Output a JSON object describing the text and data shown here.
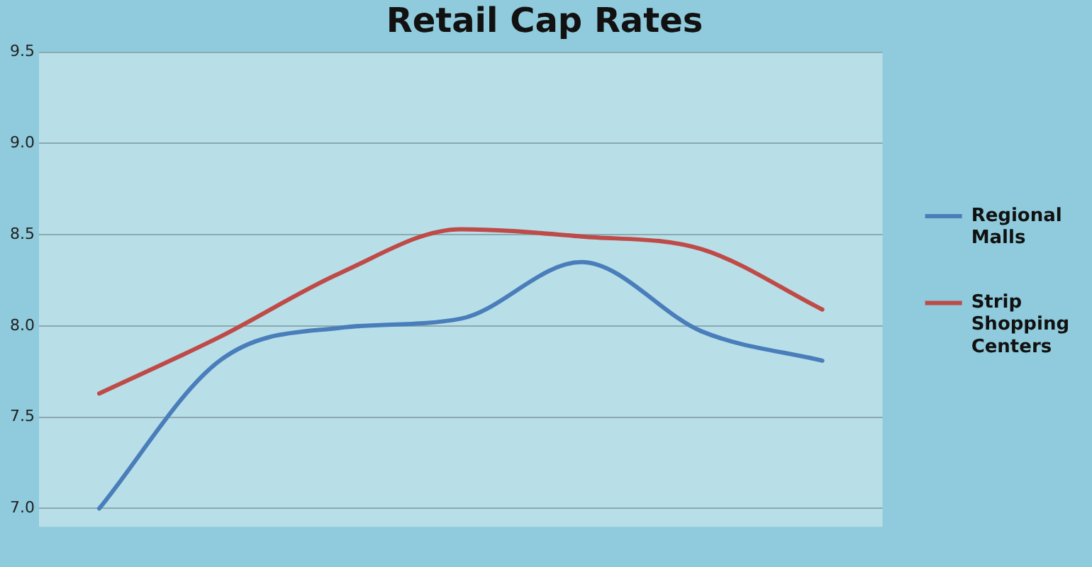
{
  "chart_data": {
    "type": "line",
    "title": "Retail Cap Rates",
    "categories": [
      null,
      null,
      null,
      null,
      null,
      null,
      null
    ],
    "series": [
      {
        "name": "Regional Malls",
        "color": "#4a7ebb",
        "values": [
          7.0,
          7.81,
          7.99,
          8.04,
          8.35,
          7.97,
          7.81
        ]
      },
      {
        "name": "Strip Shopping Centers",
        "color": "#be4b48",
        "values": [
          7.63,
          7.94,
          8.29,
          8.53,
          8.49,
          8.42,
          8.09
        ]
      }
    ],
    "ylim": [
      6.9,
      9.5
    ],
    "yticks": [
      {
        "value": 7,
        "label": "7.0"
      },
      7.5,
      {
        "value": 8,
        "label": "8.0"
      },
      8.5,
      {
        "value": 9,
        "label": "9.0"
      },
      9.5
    ],
    "grid": "y",
    "legend": "right",
    "marker": "none",
    "line_style": "solid"
  }
}
